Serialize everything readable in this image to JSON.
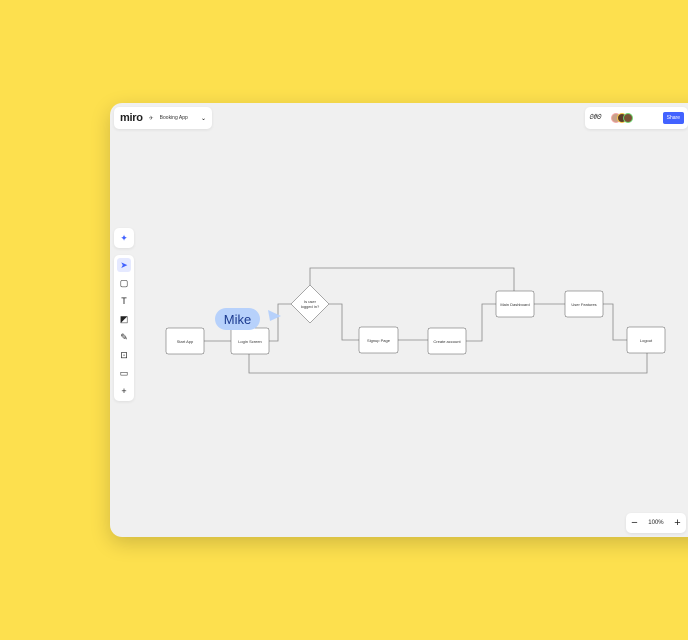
{
  "header": {
    "logo": "miro",
    "board_name": "Booking App",
    "share_label": "Share"
  },
  "toolbar": {
    "tools": [
      {
        "icon": "select-arrow-icon",
        "glyph": "➤"
      },
      {
        "icon": "sticky-note-icon",
        "glyph": "▢"
      },
      {
        "icon": "text-icon",
        "glyph": "T"
      },
      {
        "icon": "shapes-icon",
        "glyph": "◩"
      },
      {
        "icon": "pen-icon",
        "glyph": "✎"
      },
      {
        "icon": "frame-icon",
        "glyph": "⊡"
      },
      {
        "icon": "comment-icon",
        "glyph": "▭"
      },
      {
        "icon": "add-icon",
        "glyph": "+"
      }
    ]
  },
  "zoom": {
    "level": "100%",
    "minus": "−",
    "plus": "+"
  },
  "cursor": {
    "name": "Mike",
    "color": "#b7d1fb"
  },
  "flow": {
    "nodes": [
      {
        "id": "start",
        "label": "Start App"
      },
      {
        "id": "login",
        "label": "Login Screen"
      },
      {
        "id": "decision",
        "label": "Is user logged in?"
      },
      {
        "id": "signup",
        "label": "Signup Page"
      },
      {
        "id": "create",
        "label": "Create account"
      },
      {
        "id": "dash",
        "label": "Main Dashboard"
      },
      {
        "id": "features",
        "label": "User Features"
      },
      {
        "id": "logout",
        "label": "Logout"
      }
    ]
  },
  "colors": {
    "background": "#fde04e",
    "canvas": "#f0f0f0",
    "accent": "#4262ff"
  }
}
